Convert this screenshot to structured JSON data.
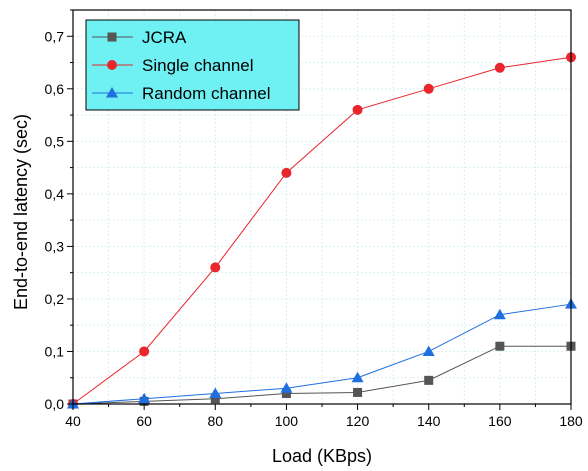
{
  "chart_data": {
    "type": "line",
    "title": "",
    "xlabel": "Load (KBps)",
    "ylabel": "End-to-end latency (sec)",
    "x": [
      40,
      60,
      80,
      100,
      120,
      140,
      160,
      180
    ],
    "xlim": [
      40,
      180
    ],
    "ylim": [
      0,
      0.75
    ],
    "xticks": [
      40,
      60,
      80,
      100,
      120,
      140,
      160,
      180
    ],
    "xtick_labels": [
      "40",
      "60",
      "80",
      "100",
      "120",
      "140",
      "160",
      "180"
    ],
    "yticks": [
      0,
      0.1,
      0.2,
      0.3,
      0.4,
      0.5,
      0.6,
      0.7
    ],
    "ytick_labels": [
      "0,0",
      "0,1",
      "0,2",
      "0,3",
      "0,4",
      "0,5",
      "0,6",
      "0,7"
    ],
    "grid": true,
    "legend_position": "top-left",
    "legend_background": "#6ff0f2",
    "series": [
      {
        "name": "JCRA",
        "marker": "square",
        "color": "#555555",
        "line_color": "#555555",
        "values": [
          0.0,
          0.005,
          0.01,
          0.02,
          0.022,
          0.045,
          0.11,
          0.11
        ]
      },
      {
        "name": "Single channel",
        "marker": "circle",
        "color": "#e8262b",
        "line_color": "#e8262b",
        "values": [
          0.0,
          0.1,
          0.26,
          0.44,
          0.56,
          0.6,
          0.64,
          0.66
        ]
      },
      {
        "name": "Random channel",
        "marker": "triangle",
        "color": "#1f6fe0",
        "line_color": "#1f6fe0",
        "values": [
          0.0,
          0.01,
          0.02,
          0.03,
          0.05,
          0.1,
          0.17,
          0.19
        ]
      }
    ]
  }
}
